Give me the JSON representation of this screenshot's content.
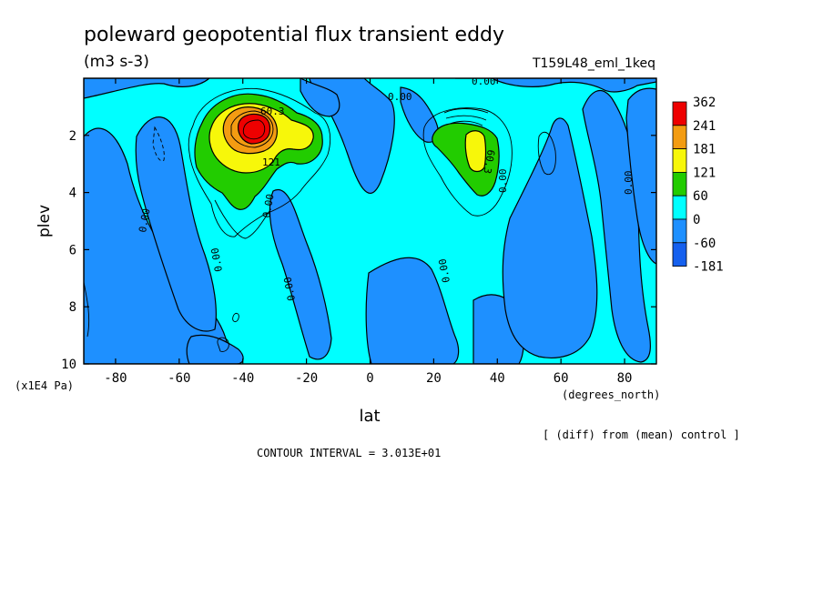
{
  "header": {
    "title": "poleward geopotential flux transient eddy",
    "units": "(m3 s-3)",
    "run_id": "T159L48_eml_1keq"
  },
  "footer": {
    "diff_note": "[ (diff) from (mean) control ]",
    "contour_interval": "CONTOUR INTERVAL = 3.013E+01"
  },
  "chart_data": {
    "type": "contour",
    "title": "poleward geopotential flux transient eddy",
    "xlabel": "lat",
    "x_units": "(degrees_north)",
    "ylabel": "plev",
    "y_units": "(x1E4 Pa)",
    "xlim": [
      -90,
      90
    ],
    "ylim": [
      0,
      10
    ],
    "y_inverted": true,
    "x_ticks": [
      -80,
      -60,
      -40,
      -20,
      0,
      20,
      40,
      60,
      80
    ],
    "y_ticks": [
      2,
      4,
      6,
      8,
      10
    ],
    "colorbar": {
      "labels": [
        "362",
        "241",
        "181",
        "121",
        "60",
        "0",
        "-60",
        "-181"
      ],
      "colors": [
        "#ee0000",
        "#f39c12",
        "#f7f70a",
        "#22cc00",
        "#00ffff",
        "#1e90ff",
        "#1560ee"
      ]
    },
    "contour_labels": [
      {
        "text": "0.00",
        "lat": 32,
        "plev": 0.1
      },
      {
        "text": "0.00",
        "lat": 9,
        "plev": 0.45
      },
      {
        "text": "60.3",
        "lat": -33,
        "plev": 1.0
      },
      {
        "text": "121",
        "lat": -30,
        "plev": 2.7
      },
      {
        "text": "0.00",
        "lat": -34,
        "plev": 4.3
      },
      {
        "text": "0.00",
        "lat": -74,
        "plev": 4.9
      },
      {
        "text": "0.00",
        "lat": -50,
        "plev": 6.5
      },
      {
        "text": "0.00",
        "lat": -26,
        "plev": 8.0
      },
      {
        "text": "60.3",
        "lat": 39,
        "plev": 2.2
      },
      {
        "text": "0.00",
        "lat": 44,
        "plev": 3.4
      },
      {
        "text": "0.00",
        "lat": 25,
        "plev": 7.4
      },
      {
        "text": "0.00",
        "lat": 83,
        "plev": 3.6
      }
    ]
  }
}
